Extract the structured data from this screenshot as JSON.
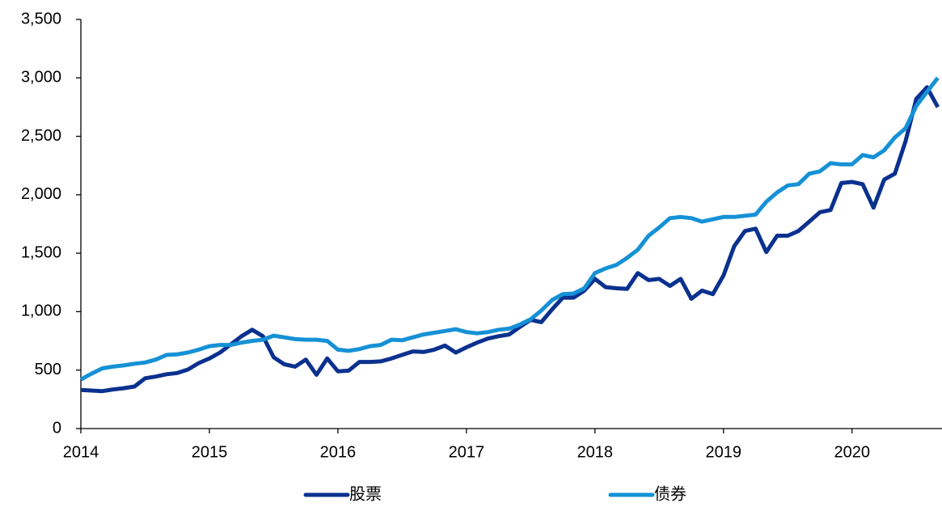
{
  "chart_data": {
    "type": "line",
    "x": [
      2014,
      2014.083,
      2014.167,
      2014.25,
      2014.333,
      2014.417,
      2014.5,
      2014.583,
      2014.667,
      2014.75,
      2014.833,
      2014.917,
      2015,
      2015.083,
      2015.167,
      2015.25,
      2015.333,
      2015.417,
      2015.5,
      2015.583,
      2015.667,
      2015.75,
      2015.833,
      2015.917,
      2016,
      2016.083,
      2016.167,
      2016.25,
      2016.333,
      2016.417,
      2016.5,
      2016.583,
      2016.667,
      2016.75,
      2016.833,
      2016.917,
      2017,
      2017.083,
      2017.167,
      2017.25,
      2017.333,
      2017.417,
      2017.5,
      2017.583,
      2017.667,
      2017.75,
      2017.833,
      2017.917,
      2018,
      2018.083,
      2018.167,
      2018.25,
      2018.333,
      2018.417,
      2018.5,
      2018.583,
      2018.667,
      2018.75,
      2018.833,
      2018.917,
      2019,
      2019.083,
      2019.167,
      2019.25,
      2019.333,
      2019.417,
      2019.5,
      2019.583,
      2019.667,
      2019.75,
      2019.833,
      2019.917,
      2020,
      2020.083,
      2020.167,
      2020.25,
      2020.333,
      2020.417,
      2020.5,
      2020.583,
      2020.667
    ],
    "series": [
      {
        "name": "股票",
        "color": "#0b318f",
        "values": [
          330,
          325,
          320,
          335,
          345,
          360,
          430,
          445,
          465,
          475,
          505,
          560,
          600,
          650,
          720,
          790,
          845,
          790,
          610,
          550,
          530,
          590,
          460,
          600,
          490,
          495,
          570,
          570,
          575,
          600,
          630,
          660,
          655,
          675,
          710,
          650,
          695,
          735,
          770,
          790,
          805,
          870,
          930,
          910,
          1020,
          1120,
          1120,
          1180,
          1280,
          1210,
          1200,
          1195,
          1330,
          1270,
          1280,
          1220,
          1280,
          1110,
          1180,
          1150,
          1310,
          1560,
          1690,
          1710,
          1510,
          1650,
          1650,
          1690,
          1770,
          1850,
          1870,
          2100,
          2110,
          2090,
          1890,
          2130,
          2180,
          2460,
          2820,
          2920,
          2750
        ]
      },
      {
        "name": "债券",
        "color": "#1591d6",
        "values": [
          420,
          470,
          515,
          530,
          540,
          555,
          565,
          590,
          630,
          635,
          650,
          675,
          705,
          715,
          715,
          735,
          750,
          760,
          795,
          780,
          765,
          760,
          760,
          750,
          675,
          665,
          680,
          705,
          715,
          760,
          755,
          780,
          805,
          820,
          835,
          850,
          825,
          815,
          825,
          845,
          855,
          890,
          935,
          1010,
          1100,
          1150,
          1155,
          1200,
          1330,
          1370,
          1400,
          1460,
          1530,
          1650,
          1720,
          1800,
          1810,
          1800,
          1770,
          1790,
          1810,
          1810,
          1820,
          1830,
          1940,
          2020,
          2080,
          2090,
          2180,
          2200,
          2270,
          2260,
          2260,
          2340,
          2320,
          2380,
          2490,
          2570,
          2760,
          2880,
          3000
        ]
      }
    ],
    "xlim": [
      2014,
      2020.7
    ],
    "xticks": [
      2014,
      2015,
      2016,
      2017,
      2018,
      2019,
      2020
    ],
    "ylim": [
      0,
      3500
    ],
    "yticks": [
      0,
      500,
      {
        "value": 1000,
        "label": "1,000"
      },
      {
        "value": 1500,
        "label": "1,500"
      },
      {
        "value": 2000,
        "label": "2,000"
      },
      {
        "value": 2500,
        "label": "2,500"
      },
      {
        "value": 3000,
        "label": "3,000"
      },
      {
        "value": 3500,
        "label": "3,500"
      }
    ],
    "legend": "bottom"
  }
}
